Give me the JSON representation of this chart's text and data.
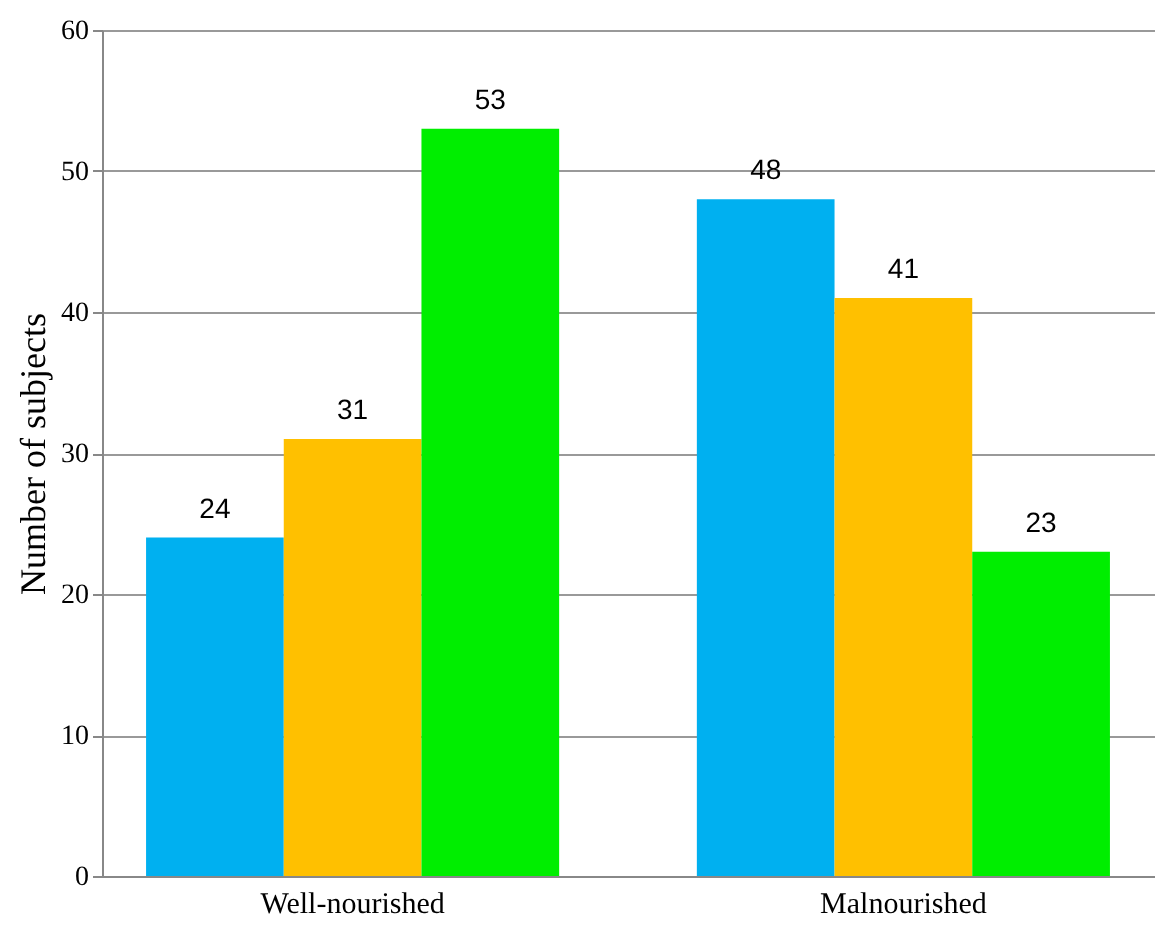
{
  "chart_data": {
    "type": "bar",
    "ylabel": "Number of  subjects",
    "categories": [
      "Well-nourished",
      "Malnourished"
    ],
    "series": [
      {
        "color": "#00b0f0",
        "values": [
          24,
          48
        ]
      },
      {
        "color": "#ffc000",
        "values": [
          31,
          41
        ]
      },
      {
        "color": "#00ee00",
        "values": [
          53,
          23
        ]
      }
    ],
    "ylim": [
      0,
      60
    ],
    "yticks": [
      0,
      10,
      20,
      30,
      40,
      50,
      60
    ],
    "grid": "y",
    "data_labels": true
  }
}
